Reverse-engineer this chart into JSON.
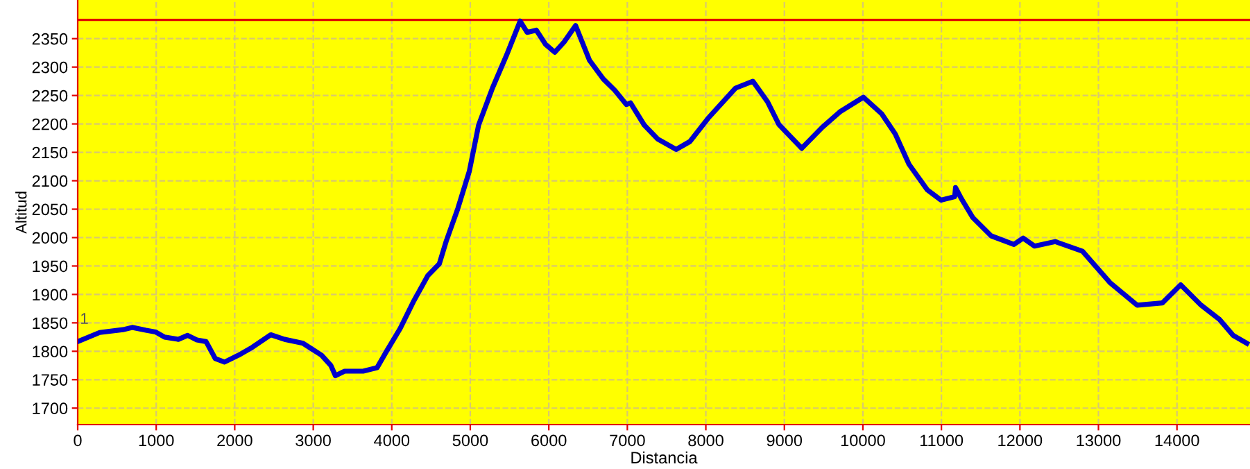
{
  "chart_data": {
    "type": "line",
    "xlabel": "Distancia",
    "ylabel": "Altitud",
    "xlim": [
      0,
      14930
    ],
    "ylim": [
      1671,
      2418
    ],
    "xticks": [
      0,
      1000,
      2000,
      3000,
      4000,
      5000,
      6000,
      7000,
      8000,
      9000,
      10000,
      11000,
      12000,
      13000,
      14000
    ],
    "yticks": [
      1700,
      1750,
      1800,
      1850,
      1900,
      1950,
      2000,
      2050,
      2100,
      2150,
      2200,
      2250,
      2300,
      2350
    ],
    "grid": true,
    "marker": "none",
    "line_style": "solid",
    "ref_lines": [
      {
        "axis": "y",
        "value": 2383,
        "label": null,
        "color": "#e00000"
      }
    ],
    "annotations": [
      "1"
    ],
    "series": [
      {
        "color": "#0000cc",
        "x": [
          0,
          280,
          576,
          694,
          870,
          990,
          1106,
          1282,
          1400,
          1518,
          1635,
          1753,
          1870,
          2047,
          2224,
          2459,
          2635,
          2870,
          3106,
          3224,
          3282,
          3400,
          3635,
          3812,
          3929,
          4106,
          4282,
          4459,
          4606,
          4694,
          4841,
          4988,
          5106,
          5282,
          5459,
          5635,
          5724,
          5841,
          5959,
          6076,
          6194,
          6341,
          6518,
          6694,
          6841,
          6988,
          7041,
          7215,
          7390,
          7622,
          7797,
          8029,
          8378,
          8599,
          8785,
          8930,
          9221,
          9483,
          9715,
          10006,
          10238,
          10413,
          10587,
          10820,
          10994,
          11169,
          11180,
          11256,
          11401,
          11634,
          11924,
          12041,
          12186,
          12448,
          12797,
          13145,
          13494,
          13814,
          14047,
          14308,
          14541,
          14715,
          14890
        ],
        "values": [
          1817,
          1833,
          1838,
          1842,
          1837,
          1834,
          1825,
          1821,
          1828,
          1820,
          1817,
          1787,
          1781,
          1793,
          1807,
          1829,
          1821,
          1814,
          1793,
          1775,
          1757,
          1765,
          1765,
          1771,
          1799,
          1840,
          1889,
          1933,
          1954,
          1994,
          2051,
          2117,
          2198,
          2263,
          2320,
          2381,
          2361,
          2365,
          2340,
          2326,
          2344,
          2373,
          2312,
          2279,
          2259,
          2234,
          2237,
          2198,
          2173,
          2155,
          2169,
          2210,
          2263,
          2275,
          2239,
          2199,
          2157,
          2194,
          2222,
          2247,
          2218,
          2182,
          2129,
          2084,
          2066,
          2072,
          2088,
          2068,
          2035,
          2003,
          1988,
          1999,
          1985,
          1993,
          1976,
          1921,
          1881,
          1885,
          1917,
          1881,
          1856,
          1828,
          1814
        ]
      }
    ]
  }
}
